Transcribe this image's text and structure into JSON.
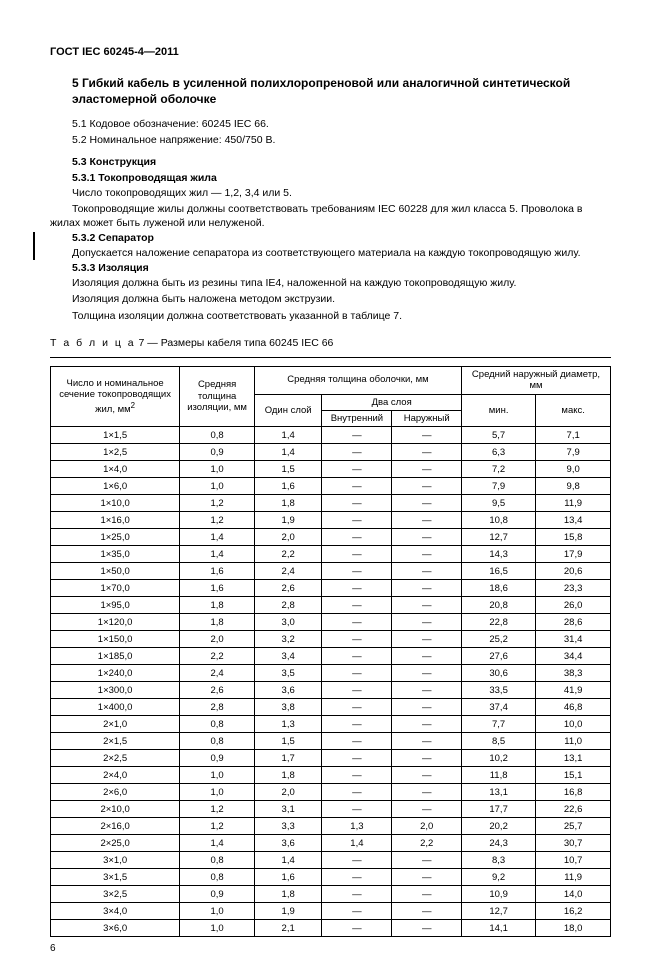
{
  "docId": "ГОСТ IEC 60245-4—2011",
  "sectionTitle": "5  Гибкий кабель в усиленной полихлоропреновой или аналогичной синтетической эластомерной оболочке",
  "p51": "5.1  Кодовое обозначение: 60245 IEC 66.",
  "p52": "5.2  Номинальное напряжение: 450/750 В.",
  "h53": "5.3  Конструкция",
  "h531": "5.3.1  Токопроводящая жила",
  "p531a": "Число токопроводящих жил — 1,2, 3,4 или 5.",
  "p531b": "Токопроводящие жилы должны соответствовать требованиям IEC 60228 для жил класса 5. Проволока в жилах может быть луженой или нелуженой.",
  "h532": "5.3.2  Сепаратор",
  "p532": "Допускается наложение сепаратора из соответствующего материала на каждую токопроводящую жилу.",
  "h533": "5.3.3  Изоляция",
  "p533a": "Изоляция должна быть из резины типа IE4, наложенной на каждую токопроводящую жилу.",
  "p533b": "Изоляция должна быть наложена методом экструзии.",
  "p533c": "Толщина изоляции должна соответствовать указанной в таблице 7.",
  "tableCaptionPrefix": "Т а б л и ц а",
  "tableCaptionRest": "  7 — Размеры кабеля типа 60245 IEC 66",
  "headers": {
    "spec": "Число и номинальное сечение токопроводящих жил, мм",
    "specSup": "2",
    "ins": "Средняя толщина изоляции, мм",
    "sheath": "Средняя толщина оболочки, мм",
    "one": "Один слой",
    "two": "Два слоя",
    "inner": "Внутренний",
    "outer": "Наружный",
    "outerD": "Средний наружный диаметр, мм",
    "min": "мин.",
    "max": "макс."
  },
  "rows": [
    [
      "1×1,5",
      "0,8",
      "1,4",
      "—",
      "—",
      "5,7",
      "7,1"
    ],
    [
      "1×2,5",
      "0,9",
      "1,4",
      "—",
      "—",
      "6,3",
      "7,9"
    ],
    [
      "1×4,0",
      "1,0",
      "1,5",
      "—",
      "—",
      "7,2",
      "9,0"
    ],
    [
      "1×6,0",
      "1,0",
      "1,6",
      "—",
      "—",
      "7,9",
      "9,8"
    ],
    [
      "1×10,0",
      "1,2",
      "1,8",
      "—",
      "—",
      "9,5",
      "11,9"
    ],
    [
      "1×16,0",
      "1,2",
      "1,9",
      "—",
      "—",
      "10,8",
      "13,4"
    ],
    [
      "1×25,0",
      "1,4",
      "2,0",
      "—",
      "—",
      "12,7",
      "15,8"
    ],
    [
      "1×35,0",
      "1,4",
      "2,2",
      "—",
      "—",
      "14,3",
      "17,9"
    ],
    [
      "1×50,0",
      "1,6",
      "2,4",
      "—",
      "—",
      "16,5",
      "20,6"
    ],
    [
      "1×70,0",
      "1,6",
      "2,6",
      "—",
      "—",
      "18,6",
      "23,3"
    ],
    [
      "1×95,0",
      "1,8",
      "2,8",
      "—",
      "—",
      "20,8",
      "26,0"
    ],
    [
      "1×120,0",
      "1,8",
      "3,0",
      "—",
      "—",
      "22,8",
      "28,6"
    ],
    [
      "1×150,0",
      "2,0",
      "3,2",
      "—",
      "—",
      "25,2",
      "31,4"
    ],
    [
      "1×185,0",
      "2,2",
      "3,4",
      "—",
      "—",
      "27,6",
      "34,4"
    ],
    [
      "1×240,0",
      "2,4",
      "3,5",
      "—",
      "—",
      "30,6",
      "38,3"
    ],
    [
      "1×300,0",
      "2,6",
      "3,6",
      "—",
      "—",
      "33,5",
      "41,9"
    ],
    [
      "1×400,0",
      "2,8",
      "3,8",
      "—",
      "—",
      "37,4",
      "46,8"
    ],
    [
      "2×1,0",
      "0,8",
      "1,3",
      "—",
      "—",
      "7,7",
      "10,0"
    ],
    [
      "2×1,5",
      "0,8",
      "1,5",
      "—",
      "—",
      "8,5",
      "11,0"
    ],
    [
      "2×2,5",
      "0,9",
      "1,7",
      "—",
      "—",
      "10,2",
      "13,1"
    ],
    [
      "2×4,0",
      "1,0",
      "1,8",
      "—",
      "—",
      "11,8",
      "15,1"
    ],
    [
      "2×6,0",
      "1,0",
      "2,0",
      "—",
      "—",
      "13,1",
      "16,8"
    ],
    [
      "2×10,0",
      "1,2",
      "3,1",
      "—",
      "—",
      "17,7",
      "22,6"
    ],
    [
      "2×16,0",
      "1,2",
      "3,3",
      "1,3",
      "2,0",
      "20,2",
      "25,7"
    ],
    [
      "2×25,0",
      "1,4",
      "3,6",
      "1,4",
      "2,2",
      "24,3",
      "30,7"
    ],
    [
      "3×1,0",
      "0,8",
      "1,4",
      "—",
      "—",
      "8,3",
      "10,7"
    ],
    [
      "3×1,5",
      "0,8",
      "1,6",
      "—",
      "—",
      "9,2",
      "11,9"
    ],
    [
      "3×2,5",
      "0,9",
      "1,8",
      "—",
      "—",
      "10,9",
      "14,0"
    ],
    [
      "3×4,0",
      "1,0",
      "1,9",
      "—",
      "—",
      "12,7",
      "16,2"
    ],
    [
      "3×6,0",
      "1,0",
      "2,1",
      "—",
      "—",
      "14,1",
      "18,0"
    ]
  ],
  "pageNum": "6"
}
